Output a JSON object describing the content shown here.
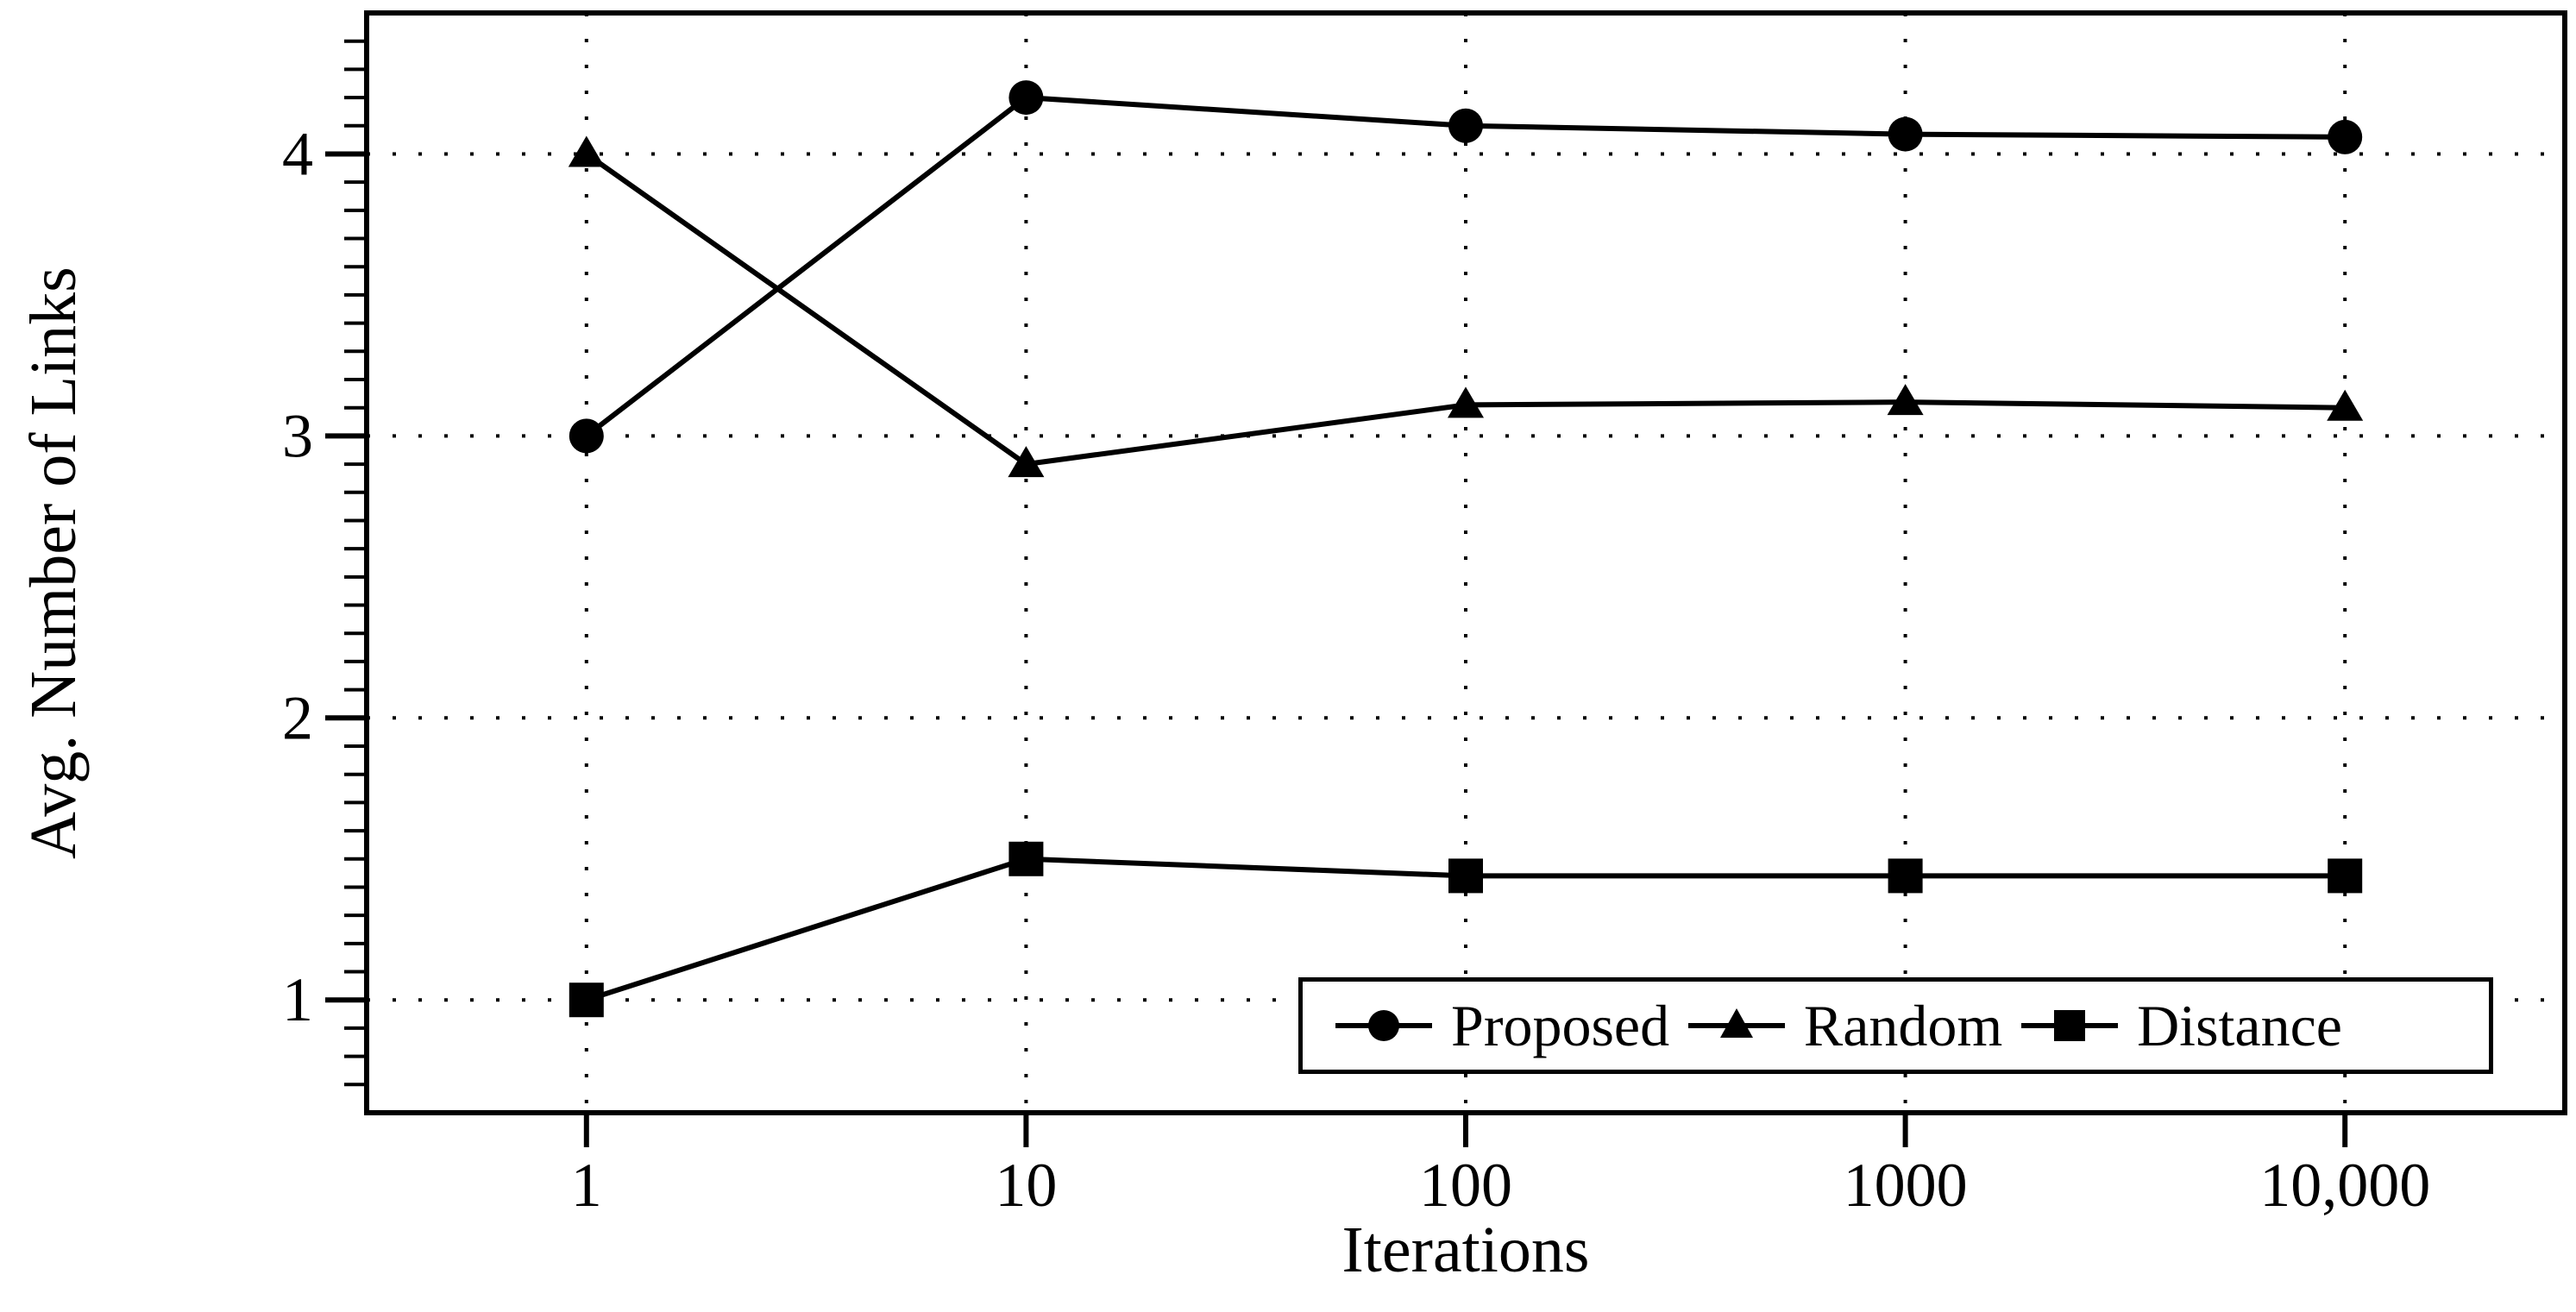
{
  "chart_data": {
    "type": "line",
    "title": "",
    "xlabel": "Iterations",
    "ylabel": "Avg. Number of Links",
    "x_scale": "log",
    "x": [
      1,
      10,
      100,
      1000,
      10000
    ],
    "x_tick_labels": [
      "1",
      "10",
      "100",
      "1000",
      "10,000"
    ],
    "x_range_log10": [
      -0.5,
      4.5
    ],
    "y_range": [
      0.6,
      4.5
    ],
    "y_major_ticks": [
      1,
      2,
      3,
      4
    ],
    "y_minor_tick_step": 0.1,
    "grid": "dotted lines at every labeled x decade and y integer",
    "legend_position": "inside bottom-right",
    "series": [
      {
        "name": "Proposed",
        "marker": "circle",
        "values": [
          3.0,
          4.2,
          4.1,
          4.07,
          4.06
        ]
      },
      {
        "name": "Random",
        "marker": "triangle",
        "values": [
          4.0,
          2.9,
          3.11,
          3.12,
          3.1
        ]
      },
      {
        "name": "Distance",
        "marker": "square",
        "values": [
          1.0,
          1.5,
          1.44,
          1.44,
          1.44
        ]
      }
    ],
    "colors": {
      "foreground": "#000000",
      "background": "#ffffff"
    }
  }
}
